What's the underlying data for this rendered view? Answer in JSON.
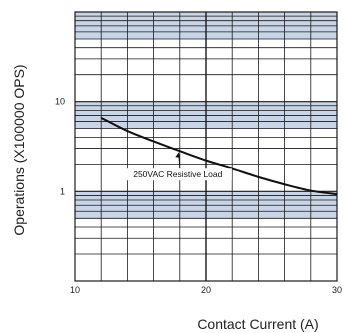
{
  "chart_data": {
    "type": "line",
    "xlabel": "Contact Current (A)",
    "ylabel": "Operations (X100000 OPS)",
    "x_scale": "linear",
    "y_scale": "log",
    "xlim": [
      10,
      30
    ],
    "ylim": [
      0.1,
      100
    ],
    "x_tick_labels": [
      "10",
      "20",
      "30"
    ],
    "y_tick_labels": [
      "10",
      "1"
    ],
    "grid": true,
    "colors": {
      "band": "#c9d4e7",
      "grid": "#1a1a1a",
      "curve": "#111111"
    },
    "series": [
      {
        "x": [
          12,
          14,
          16,
          18,
          20,
          22,
          24,
          26,
          28,
          30
        ],
        "y": [
          6.6,
          4.7,
          3.6,
          2.8,
          2.2,
          1.8,
          1.45,
          1.2,
          1.02,
          0.93
        ]
      }
    ],
    "annotations": [
      {
        "text": "250VAC Resistive Load",
        "x": 18,
        "y": 2.8
      }
    ]
  }
}
